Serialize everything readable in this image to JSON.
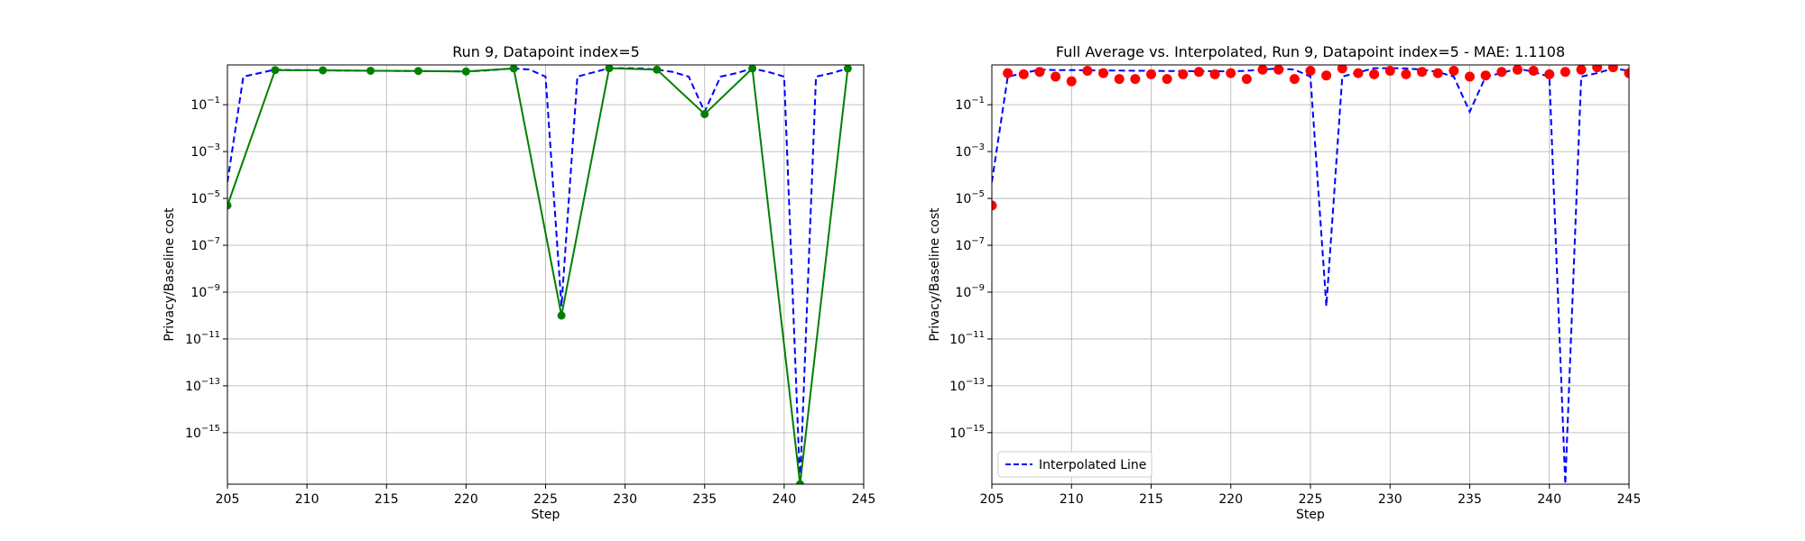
{
  "chart_data": [
    {
      "type": "line",
      "title": "Run 9, Datapoint index=5",
      "xlabel": "Step",
      "ylabel": "Privacy/Baseline cost",
      "xlim": [
        205,
        245
      ],
      "ylim_log10": [
        -17.2,
        0.7
      ],
      "yscale": "log",
      "grid": true,
      "xticks": [
        205,
        210,
        215,
        220,
        225,
        230,
        235,
        240,
        245
      ],
      "yticks_exp": [
        -1,
        -3,
        -5,
        -7,
        -9,
        -11,
        -13,
        -15
      ],
      "series": [
        {
          "style": "dashed",
          "color": "#0000ff",
          "x": [
            205,
            206,
            207,
            208,
            209,
            210,
            211,
            212,
            213,
            214,
            215,
            216,
            217,
            218,
            219,
            220,
            221,
            222,
            223,
            224,
            225,
            226,
            227,
            228,
            229,
            230,
            231,
            232,
            233,
            234,
            235,
            236,
            237,
            238,
            239,
            240,
            241,
            242,
            243,
            244
          ],
          "log10_y": [
            -4.3,
            0.2,
            0.35,
            0.5,
            0.48,
            0.48,
            0.47,
            0.46,
            0.46,
            0.45,
            0.45,
            0.44,
            0.44,
            0.43,
            0.43,
            0.42,
            0.45,
            0.5,
            0.55,
            0.5,
            0.2,
            -9.6,
            0.2,
            0.38,
            0.56,
            0.56,
            0.55,
            0.5,
            0.4,
            0.2,
            -1.3,
            0.2,
            0.35,
            0.55,
            0.4,
            0.2,
            -17.2,
            0.2,
            0.35,
            0.55
          ]
        },
        {
          "style": "solid-markers",
          "color": "#008000",
          "x": [
            205,
            208,
            211,
            214,
            217,
            220,
            223,
            226,
            229,
            232,
            235,
            238,
            241,
            244
          ],
          "log10_y": [
            -5.3,
            0.48,
            0.47,
            0.45,
            0.44,
            0.42,
            0.55,
            -10.0,
            0.56,
            0.5,
            -1.4,
            0.55,
            -17.2,
            0.55
          ]
        }
      ]
    },
    {
      "type": "line",
      "title": "Full Average vs. Interpolated, Run 9, Datapoint index=5 - MAE: 1.1108",
      "xlabel": "Step",
      "ylabel": "Privacy/Baseline cost",
      "xlim": [
        205,
        245
      ],
      "ylim_log10": [
        -17.2,
        0.7
      ],
      "yscale": "log",
      "grid": true,
      "legend": "lower-left",
      "xticks": [
        205,
        210,
        215,
        220,
        225,
        230,
        235,
        240,
        245
      ],
      "yticks_exp": [
        -1,
        -3,
        -5,
        -7,
        -9,
        -11,
        -13,
        -15
      ],
      "series": [
        {
          "name": "Interpolated Line",
          "style": "dashed",
          "color": "#0000ff",
          "x": [
            205,
            206,
            207,
            208,
            209,
            210,
            211,
            212,
            213,
            214,
            215,
            216,
            217,
            218,
            219,
            220,
            221,
            222,
            223,
            224,
            225,
            226,
            227,
            228,
            229,
            230,
            231,
            232,
            233,
            234,
            235,
            236,
            237,
            238,
            239,
            240,
            241,
            242,
            243,
            244,
            245
          ],
          "log10_y": [
            -4.3,
            0.2,
            0.35,
            0.5,
            0.48,
            0.48,
            0.47,
            0.46,
            0.46,
            0.45,
            0.45,
            0.44,
            0.44,
            0.43,
            0.43,
            0.42,
            0.45,
            0.5,
            0.55,
            0.5,
            0.2,
            -9.6,
            0.2,
            0.38,
            0.56,
            0.56,
            0.55,
            0.5,
            0.4,
            0.2,
            -1.3,
            0.2,
            0.35,
            0.55,
            0.4,
            0.2,
            -17.2,
            0.2,
            0.35,
            0.55,
            0.45
          ]
        },
        {
          "style": "scatter",
          "color": "#ff0000",
          "x": [
            205,
            206,
            207,
            208,
            209,
            210,
            211,
            212,
            213,
            214,
            215,
            216,
            217,
            218,
            219,
            220,
            221,
            222,
            223,
            224,
            225,
            226,
            227,
            228,
            229,
            230,
            231,
            232,
            233,
            234,
            235,
            236,
            237,
            238,
            239,
            240,
            241,
            242,
            243,
            244,
            245
          ],
          "log10_y": [
            -5.3,
            0.35,
            0.3,
            0.4,
            0.2,
            0.0,
            0.45,
            0.35,
            0.1,
            0.1,
            0.3,
            0.1,
            0.3,
            0.4,
            0.3,
            0.35,
            0.1,
            0.5,
            0.5,
            0.1,
            0.45,
            0.25,
            0.55,
            0.35,
            0.3,
            0.45,
            0.3,
            0.4,
            0.35,
            0.45,
            0.2,
            0.25,
            0.4,
            0.5,
            0.45,
            0.3,
            0.4,
            0.5,
            0.6,
            0.6,
            0.35
          ]
        }
      ]
    }
  ]
}
